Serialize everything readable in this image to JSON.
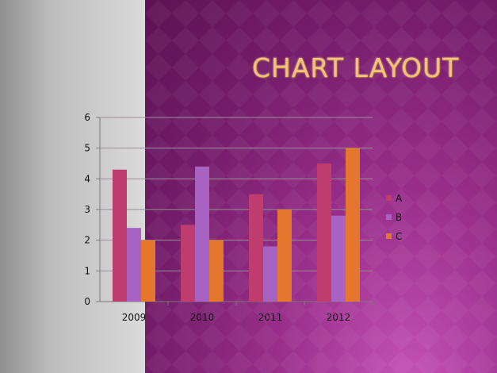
{
  "slide": {
    "title": "CHART LAYOUT",
    "colors": {
      "left_panel": "#bdbdbd",
      "background": "#741c69",
      "title": "#f4c17a"
    }
  },
  "chart_data": {
    "type": "bar",
    "categories": [
      "2009",
      "2010",
      "2011",
      "2012"
    ],
    "series": [
      {
        "name": "A",
        "color": "#be3c6e",
        "values": [
          4.3,
          2.5,
          3.5,
          4.5
        ]
      },
      {
        "name": "B",
        "color": "#a762c2",
        "values": [
          2.4,
          4.4,
          1.8,
          2.8
        ]
      },
      {
        "name": "C",
        "color": "#e4762d",
        "values": [
          2.0,
          2.0,
          3.0,
          5.0
        ]
      }
    ],
    "ylim": [
      0,
      6
    ],
    "yticks": [
      "0",
      "1",
      "2",
      "3",
      "4",
      "5",
      "6"
    ],
    "grid": true,
    "legend": "right"
  }
}
